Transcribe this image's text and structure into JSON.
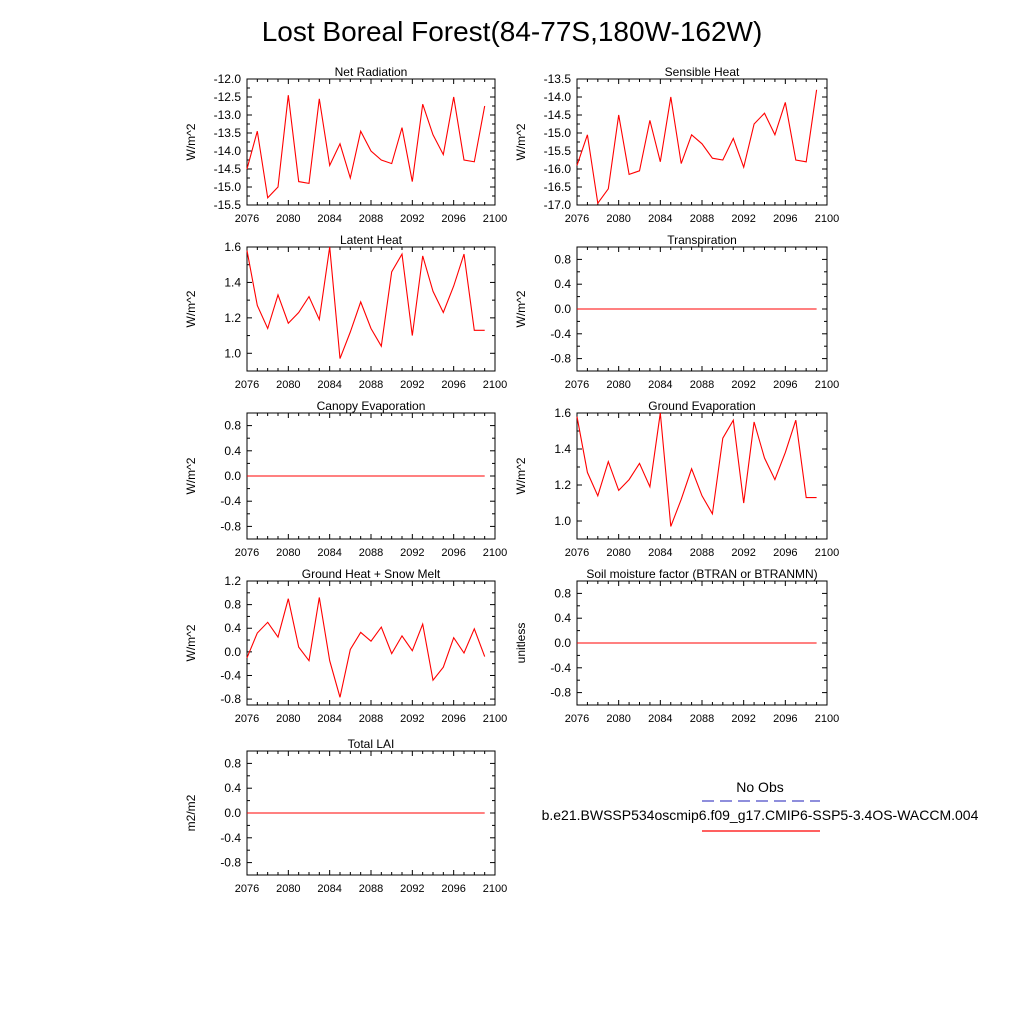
{
  "title": "Lost Boreal Forest(84-77S,180W-162W)",
  "x_ticks": [
    "2076",
    "2080",
    "2084",
    "2088",
    "2092",
    "2096",
    "2100"
  ],
  "x_tick_values": [
    2076,
    2080,
    2084,
    2088,
    2092,
    2096,
    2100
  ],
  "colors": {
    "series": "#ff0000",
    "obs": "#4b4bc8",
    "axis": "#000000"
  },
  "legend": {
    "obs_label": "No Obs",
    "model_label": "b.e21.BWSSP534oscmip6.f09_g17.CMIP6-SSP5-3.4OS-WACCM.004"
  },
  "chart_data": [
    {
      "type": "line",
      "title": "Net Radiation",
      "ylabel": "W/m^2",
      "xlim": [
        2076,
        2100
      ],
      "ylim": [
        -15.5,
        -12.0
      ],
      "yticks": [
        -15.5,
        -15.0,
        -14.5,
        -14.0,
        -13.5,
        -13.0,
        -12.5,
        -12.0
      ],
      "ytick_labels": [
        "-15.5",
        "-15.0",
        "-14.5",
        "-14.0",
        "-13.5",
        "-13.0",
        "-12.5",
        "-12.0"
      ],
      "x": [
        2076,
        2077,
        2078,
        2079,
        2080,
        2081,
        2082,
        2083,
        2084,
        2085,
        2086,
        2087,
        2088,
        2089,
        2090,
        2091,
        2092,
        2093,
        2094,
        2095,
        2096,
        2097,
        2098,
        2099
      ],
      "values": [
        -14.5,
        -13.45,
        -15.3,
        -15.0,
        -12.45,
        -14.85,
        -14.9,
        -12.55,
        -14.4,
        -13.8,
        -14.75,
        -13.45,
        -14.0,
        -14.25,
        -14.35,
        -13.35,
        -14.85,
        -12.7,
        -13.55,
        -14.1,
        -12.5,
        -14.25,
        -14.3,
        -12.75
      ]
    },
    {
      "type": "line",
      "title": "Sensible Heat",
      "ylabel": "W/m^2",
      "xlim": [
        2076,
        2100
      ],
      "ylim": [
        -17.0,
        -13.5
      ],
      "yticks": [
        -17.0,
        -16.5,
        -16.0,
        -15.5,
        -15.0,
        -14.5,
        -14.0,
        -13.5
      ],
      "ytick_labels": [
        "-17.0",
        "-16.5",
        "-16.0",
        "-15.5",
        "-15.0",
        "-14.5",
        "-14.0",
        "-13.5"
      ],
      "x": [
        2076,
        2077,
        2078,
        2079,
        2080,
        2081,
        2082,
        2083,
        2084,
        2085,
        2086,
        2087,
        2088,
        2089,
        2090,
        2091,
        2092,
        2093,
        2094,
        2095,
        2096,
        2097,
        2098,
        2099
      ],
      "values": [
        -15.9,
        -15.05,
        -16.95,
        -16.55,
        -14.5,
        -16.15,
        -16.05,
        -14.65,
        -15.8,
        -14.0,
        -15.85,
        -15.05,
        -15.3,
        -15.7,
        -15.75,
        -15.15,
        -15.95,
        -14.75,
        -14.45,
        -15.05,
        -14.15,
        -15.75,
        -15.8,
        -13.8
      ]
    },
    {
      "type": "line",
      "title": "Latent Heat",
      "ylabel": "W/m^2",
      "xlim": [
        2076,
        2100
      ],
      "ylim": [
        0.9,
        1.6
      ],
      "yticks": [
        1.0,
        1.2,
        1.4,
        1.6
      ],
      "ytick_labels": [
        "1.0",
        "1.2",
        "1.4",
        "1.6"
      ],
      "x": [
        2076,
        2077,
        2078,
        2079,
        2080,
        2081,
        2082,
        2083,
        2084,
        2085,
        2086,
        2087,
        2088,
        2089,
        2090,
        2091,
        2092,
        2093,
        2094,
        2095,
        2096,
        2097,
        2098,
        2099
      ],
      "values": [
        1.58,
        1.27,
        1.14,
        1.33,
        1.17,
        1.23,
        1.32,
        1.19,
        1.6,
        0.97,
        1.12,
        1.29,
        1.14,
        1.04,
        1.46,
        1.56,
        1.1,
        1.55,
        1.35,
        1.23,
        1.38,
        1.56,
        1.13,
        1.13
      ]
    },
    {
      "type": "line",
      "title": "Transpiration",
      "ylabel": "W/m^2",
      "xlim": [
        2076,
        2100
      ],
      "ylim": [
        -1.0,
        1.0
      ],
      "yticks": [
        -0.8,
        -0.4,
        0.0,
        0.4,
        0.8
      ],
      "ytick_labels": [
        "-0.8",
        "-0.4",
        "0.0",
        "0.4",
        "0.8"
      ],
      "x": [
        2076,
        2099
      ],
      "values": [
        0.0,
        0.0
      ]
    },
    {
      "type": "line",
      "title": "Canopy Evaporation",
      "ylabel": "W/m^2",
      "xlim": [
        2076,
        2100
      ],
      "ylim": [
        -1.0,
        1.0
      ],
      "yticks": [
        -0.8,
        -0.4,
        0.0,
        0.4,
        0.8
      ],
      "ytick_labels": [
        "-0.8",
        "-0.4",
        "0.0",
        "0.4",
        "0.8"
      ],
      "x": [
        2076,
        2099
      ],
      "values": [
        0.0,
        0.0
      ]
    },
    {
      "type": "line",
      "title": "Ground Evaporation",
      "ylabel": "W/m^2",
      "xlim": [
        2076,
        2100
      ],
      "ylim": [
        0.9,
        1.6
      ],
      "yticks": [
        1.0,
        1.2,
        1.4,
        1.6
      ],
      "ytick_labels": [
        "1.0",
        "1.2",
        "1.4",
        "1.6"
      ],
      "x": [
        2076,
        2077,
        2078,
        2079,
        2080,
        2081,
        2082,
        2083,
        2084,
        2085,
        2086,
        2087,
        2088,
        2089,
        2090,
        2091,
        2092,
        2093,
        2094,
        2095,
        2096,
        2097,
        2098,
        2099
      ],
      "values": [
        1.58,
        1.27,
        1.14,
        1.33,
        1.17,
        1.23,
        1.32,
        1.19,
        1.6,
        0.97,
        1.12,
        1.29,
        1.14,
        1.04,
        1.46,
        1.56,
        1.1,
        1.55,
        1.35,
        1.23,
        1.38,
        1.56,
        1.13,
        1.13
      ]
    },
    {
      "type": "line",
      "title": "Ground Heat + Snow Melt",
      "ylabel": "W/m^2",
      "xlim": [
        2076,
        2100
      ],
      "ylim": [
        -0.9,
        1.2
      ],
      "yticks": [
        -0.8,
        -0.4,
        0.0,
        0.4,
        0.8,
        1.2
      ],
      "ytick_labels": [
        "-0.8",
        "-0.4",
        "0.0",
        "0.4",
        "0.8",
        "1.2"
      ],
      "x": [
        2076,
        2077,
        2078,
        2079,
        2080,
        2081,
        2082,
        2083,
        2084,
        2085,
        2086,
        2087,
        2088,
        2089,
        2090,
        2091,
        2092,
        2093,
        2094,
        2095,
        2096,
        2097,
        2098,
        2099
      ],
      "values": [
        -0.1,
        0.32,
        0.5,
        0.25,
        0.9,
        0.08,
        -0.15,
        0.92,
        -0.15,
        -0.77,
        0.04,
        0.33,
        0.18,
        0.42,
        -0.03,
        0.27,
        0.02,
        0.47,
        -0.48,
        -0.26,
        0.24,
        -0.02,
        0.39,
        -0.08
      ]
    },
    {
      "type": "line",
      "title": "Soil moisture factor (BTRAN or BTRANMN)",
      "ylabel": "unitless",
      "xlim": [
        2076,
        2100
      ],
      "ylim": [
        -1.0,
        1.0
      ],
      "yticks": [
        -0.8,
        -0.4,
        0.0,
        0.4,
        0.8
      ],
      "ytick_labels": [
        "-0.8",
        "-0.4",
        "0.0",
        "0.4",
        "0.8"
      ],
      "x": [
        2076,
        2099
      ],
      "values": [
        0.0,
        0.0
      ]
    },
    {
      "type": "line",
      "title": "Total LAI",
      "ylabel": "m2/m2",
      "xlim": [
        2076,
        2100
      ],
      "ylim": [
        -1.0,
        1.0
      ],
      "yticks": [
        -0.8,
        -0.4,
        0.0,
        0.4,
        0.8
      ],
      "ytick_labels": [
        "-0.8",
        "-0.4",
        "0.0",
        "0.4",
        "0.8"
      ],
      "x": [
        2076,
        2099
      ],
      "values": [
        0.0,
        0.0
      ]
    }
  ]
}
